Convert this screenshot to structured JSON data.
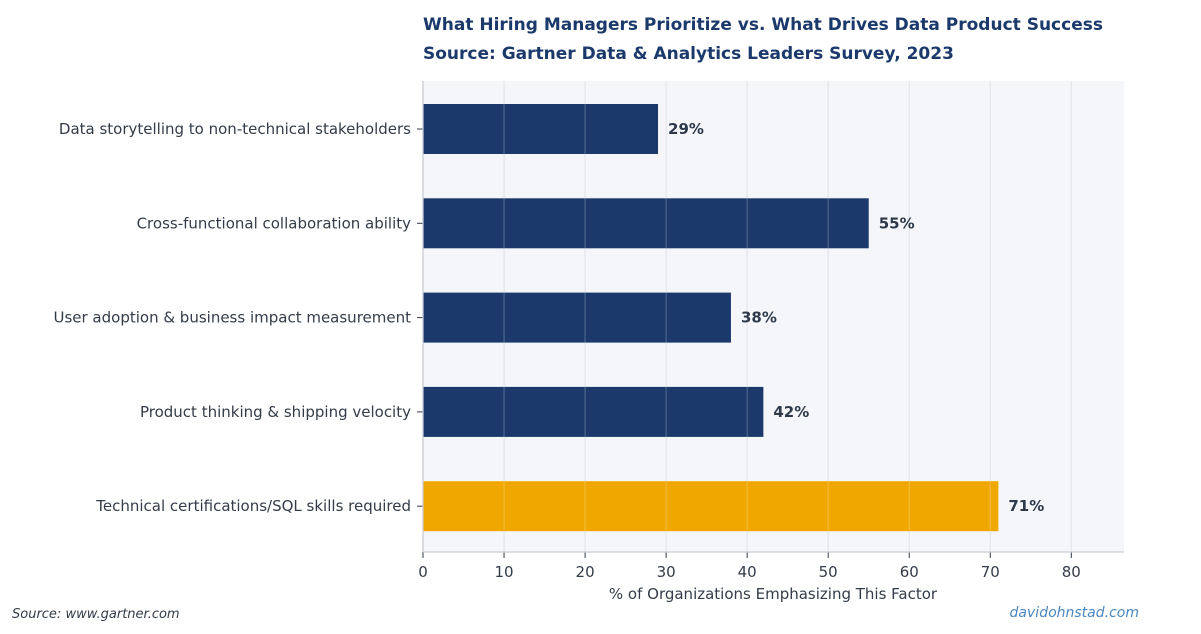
{
  "chart_data": {
    "type": "bar",
    "orientation": "horizontal",
    "title": "What Hiring Managers Prioritize vs. What Drives Data Product Success",
    "subtitle": "Source: Gartner Data & Analytics Leaders Survey, 2023",
    "xlabel": "% of Organizations Emphasizing This Factor",
    "ylabel": "",
    "xlim": [
      0,
      86.5
    ],
    "xticks": [
      0,
      10,
      20,
      30,
      40,
      50,
      60,
      70,
      80
    ],
    "grid": true,
    "legend": "none",
    "categories": [
      "Data storytelling to non-technical stakeholders",
      "Cross-functional collaboration ability",
      "User adoption & business impact measurement",
      "Product thinking & shipping velocity",
      "Technical certifications/SQL skills required"
    ],
    "values": [
      29,
      55,
      38,
      42,
      71
    ],
    "value_labels": [
      "29%",
      "55%",
      "38%",
      "42%",
      "71%"
    ],
    "colors": [
      "#1b3a6b",
      "#1b3a6b",
      "#1b3a6b",
      "#1b3a6b",
      "#f0a800"
    ]
  },
  "footer": {
    "source": "Source: www.gartner.com",
    "credit": "davidohnstad.com"
  },
  "style": {
    "plot_background": "#f4f6fa",
    "grid_color": "#dcdfe6",
    "axis_color": "#c9ccd3"
  }
}
